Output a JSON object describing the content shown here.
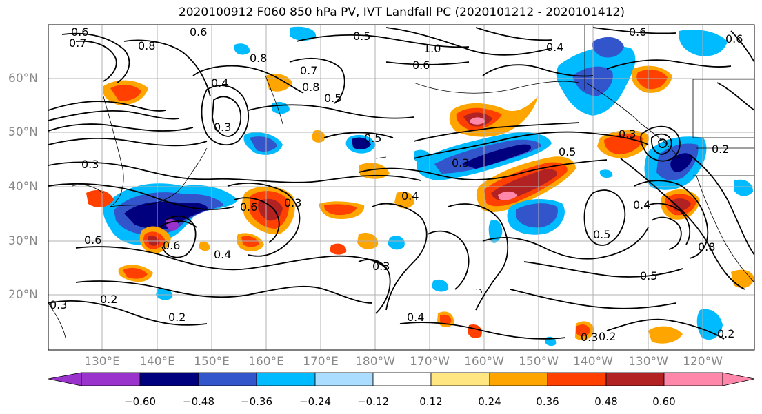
{
  "title": "2020100912 F060 850 hPa PV, IVT Landfall PC (2020101212 - 2020101412)",
  "lat_labels": [
    "60°N",
    "50°N",
    "40°N",
    "30°N",
    "20°N"
  ],
  "lon_labels": [
    "130°E",
    "140°E",
    "150°E",
    "160°E",
    "170°E",
    "180°W",
    "170°W",
    "160°W",
    "150°W",
    "140°W",
    "130°W",
    "120°W"
  ],
  "contour_labels": [
    "0.6",
    "0.7",
    "0.8",
    "0.6",
    "0.5",
    "1.0",
    "0.6",
    "0.4",
    "0.8",
    "0.7",
    "0.8",
    "0.5",
    "0.4",
    "0.3",
    "0.5",
    "0.5",
    "0.3",
    "0.3",
    "0.2",
    "0.3",
    "0.4",
    "0.6",
    "0.3",
    "0.4",
    "0.6",
    "0.6",
    "0.4",
    "0.3",
    "0.2",
    "0.2",
    "0.5",
    "0.5",
    "0.4",
    "0.8",
    "0.3",
    "0.2",
    "0.3",
    "0.6",
    "0.6",
    "0.2"
  ],
  "colorbar": {
    "ticks": [
      "−0.60",
      "−0.48",
      "−0.36",
      "−0.24",
      "−0.12",
      "0.12",
      "0.24",
      "0.36",
      "0.48",
      "0.60"
    ],
    "colors": [
      "#9933cc",
      "#00007f",
      "#3355cc",
      "#00bbff",
      "#aaddff",
      "#ffffff",
      "#ffe680",
      "#ffa500",
      "#ff4000",
      "#b22222",
      "#ff88aa"
    ]
  }
}
